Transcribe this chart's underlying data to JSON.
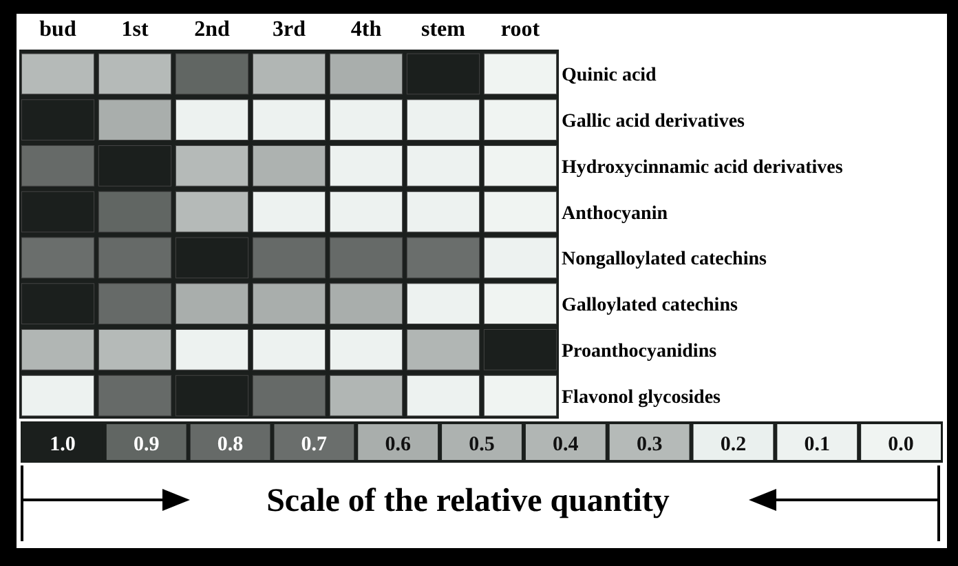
{
  "chart_data": {
    "type": "heatmap",
    "categories": [
      "bud",
      "1st",
      "2nd",
      "3rd",
      "4th",
      "stem",
      "root"
    ],
    "y_categories": [
      "Quinic acid",
      "Gallic acid derivatives",
      "Hydroxycinnamic acid derivatives",
      "Anthocyanin",
      "Nongalloylated catechins",
      "Galloylated catechins",
      "Proanthocyanidins",
      "Flavonol glycosides"
    ],
    "cells": [
      [
        0.3,
        0.3,
        0.9,
        0.4,
        0.6,
        1.0,
        0.0
      ],
      [
        1.0,
        0.6,
        0.1,
        0.1,
        0.1,
        0.1,
        0.0
      ],
      [
        0.8,
        1.0,
        0.3,
        0.5,
        0.1,
        0.1,
        0.0
      ],
      [
        1.0,
        0.9,
        0.3,
        0.1,
        0.1,
        0.1,
        0.0
      ],
      [
        0.7,
        0.8,
        1.0,
        0.8,
        0.8,
        0.7,
        0.1
      ],
      [
        1.0,
        0.8,
        0.6,
        0.6,
        0.6,
        0.1,
        0.0
      ],
      [
        0.4,
        0.3,
        0.1,
        0.1,
        0.1,
        0.4,
        1.0
      ],
      [
        0.1,
        0.8,
        1.0,
        0.8,
        0.4,
        0.1,
        0.0
      ]
    ],
    "clim": [
      1.0,
      0.0
    ],
    "cticks": [
      {
        "value": 1,
        "label": "1.0"
      },
      {
        "value": 0.9,
        "label": "0.9"
      },
      {
        "value": 0.8,
        "label": "0.8"
      },
      {
        "value": 0.7,
        "label": "0.7"
      },
      {
        "value": 0.6,
        "label": "0.6"
      },
      {
        "value": 0.5,
        "label": "0.5"
      },
      {
        "value": 0.4,
        "label": "0.4"
      },
      {
        "value": 0.3,
        "label": "0.3"
      },
      {
        "value": 0.2,
        "label": "0.2"
      },
      {
        "value": 0.1,
        "label": "0.1"
      },
      {
        "value": 0,
        "label": "0.0"
      }
    ],
    "clabel": "Scale of the relative quantity"
  }
}
